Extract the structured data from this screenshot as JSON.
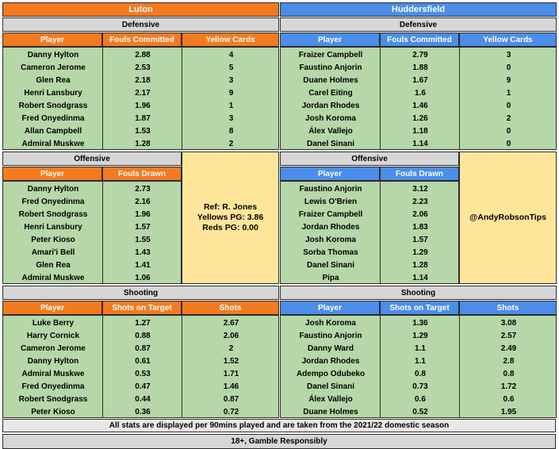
{
  "luton": {
    "team": "Luton",
    "defensive_title": "Defensive",
    "defensive_headers": [
      "Player",
      "Fouls Committed",
      "Yellow Cards"
    ],
    "defensive_rows": [
      [
        "Danny Hylton",
        "2.88",
        "4"
      ],
      [
        "Cameron Jerome",
        "2.53",
        "5"
      ],
      [
        "Glen Rea",
        "2.18",
        "3"
      ],
      [
        "Henri Lansbury",
        "2.17",
        "9"
      ],
      [
        "Robert Snodgrass",
        "1.96",
        "1"
      ],
      [
        "Fred Onyedinma",
        "1.87",
        "3"
      ],
      [
        "Allan Campbell",
        "1.53",
        "8"
      ],
      [
        "Admiral Muskwe",
        "1.28",
        "2"
      ]
    ],
    "offensive_title": "Offensive",
    "offensive_headers": [
      "Player",
      "Fouls Drawn"
    ],
    "offensive_rows": [
      [
        "Danny Hylton",
        "2.73"
      ],
      [
        "Fred Onyedinma",
        "2.16"
      ],
      [
        "Robert Snodgrass",
        "1.96"
      ],
      [
        "Henri Lansbury",
        "1.57"
      ],
      [
        "Peter Kioso",
        "1.55"
      ],
      [
        "Amari'i Bell",
        "1.43"
      ],
      [
        "Glen Rea",
        "1.41"
      ],
      [
        "Admiral Muskwe",
        "1.06"
      ]
    ],
    "shooting_title": "Shooting",
    "shooting_headers": [
      "Player",
      "Shots on Target",
      "Shots"
    ],
    "shooting_rows": [
      [
        "Luke Berry",
        "1.27",
        "2.67"
      ],
      [
        "Harry Cornick",
        "0.88",
        "2.06"
      ],
      [
        "Cameron Jerome",
        "0.87",
        "2"
      ],
      [
        "Danny Hylton",
        "0.61",
        "1.52"
      ],
      [
        "Admiral Muskwe",
        "0.53",
        "1.71"
      ],
      [
        "Fred Onyedinma",
        "0.47",
        "1.46"
      ],
      [
        "Robert Snodgrass",
        "0.44",
        "0.87"
      ],
      [
        "Peter Kioso",
        "0.36",
        "0.72"
      ]
    ]
  },
  "huddersfield": {
    "team": "Huddersfield",
    "defensive_title": "Defensive",
    "defensive_headers": [
      "Player",
      "Fouls Committed",
      "Yellow Cards"
    ],
    "defensive_rows": [
      [
        "Fraizer Campbell",
        "2.79",
        "3"
      ],
      [
        "Faustino Anjorin",
        "1.88",
        "0"
      ],
      [
        "Duane Holmes",
        "1.67",
        "9"
      ],
      [
        "Carel Eiting",
        "1.6",
        "1"
      ],
      [
        "Jordan Rhodes",
        "1.46",
        "0"
      ],
      [
        "Josh Koroma",
        "1.26",
        "2"
      ],
      [
        "Álex Vallejo",
        "1.18",
        "0"
      ],
      [
        "Danel Sinani",
        "1.14",
        "0"
      ]
    ],
    "offensive_title": "Offensive",
    "offensive_headers": [
      "Player",
      "Fouls Drawn"
    ],
    "offensive_rows": [
      [
        "Faustino Anjorin",
        "3.12"
      ],
      [
        "Lewis O'Brien",
        "2.23"
      ],
      [
        "Fraizer Campbell",
        "2.06"
      ],
      [
        "Jordan Rhodes",
        "1.83"
      ],
      [
        "Josh Koroma",
        "1.57"
      ],
      [
        "Sorba Thomas",
        "1.29"
      ],
      [
        "Danel Sinani",
        "1.28"
      ],
      [
        "Pipa",
        "1.14"
      ]
    ],
    "shooting_title": "Shooting",
    "shooting_headers": [
      "Player",
      "Shots on Target",
      "Shots"
    ],
    "shooting_rows": [
      [
        "Josh Koroma",
        "1.36",
        "3.08"
      ],
      [
        "Faustino Anjorin",
        "1.29",
        "2.57"
      ],
      [
        "Danny Ward",
        "1.1",
        "2.49"
      ],
      [
        "Jordan Rhodes",
        "1.1",
        "2.8"
      ],
      [
        "Adempo Odubeko",
        "0.8",
        "0.8"
      ],
      [
        "Danel Sinani",
        "0.73",
        "1.72"
      ],
      [
        "Álex Vallejo",
        "0.6",
        "0.6"
      ],
      [
        "Duane Holmes",
        "0.52",
        "1.95"
      ]
    ]
  },
  "referee": {
    "name": "Ref: R. Jones",
    "yellows": "Yellows PG: 3.86",
    "reds": "Reds PG: 0.00"
  },
  "handle": "@AndyRobsonTips",
  "footer": {
    "note": "All stats are displayed per 90mins played and are taken from the 2021/22 domestic season",
    "gamble": "18+, Gamble Responsibly"
  },
  "colors": {
    "luton": "#f47a1f",
    "huddersfield": "#4b8de8",
    "section": "#d6d6d6",
    "rows": "#b6d7a8",
    "info": "#ffe59a"
  }
}
